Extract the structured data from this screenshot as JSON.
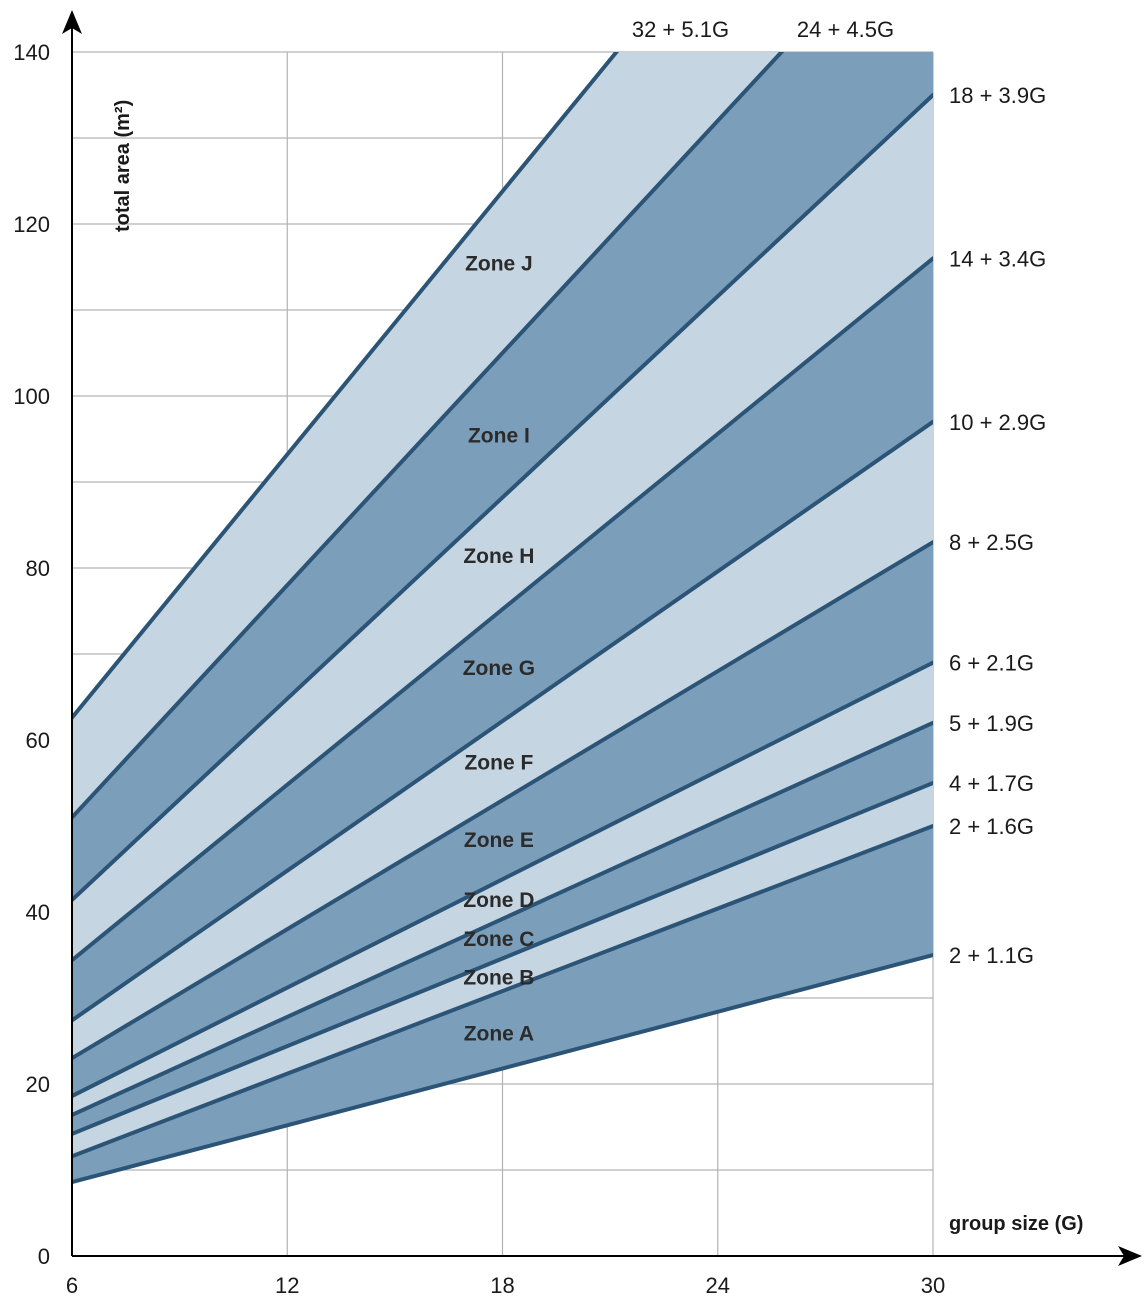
{
  "chart_data": {
    "type": "area",
    "xlabel": "group size (G)",
    "ylabel": "total area (m²)",
    "xlim": [
      6,
      30
    ],
    "ylim": [
      0,
      140
    ],
    "x_ticks": [
      6,
      12,
      18,
      24,
      30
    ],
    "y_ticks": [
      0,
      20,
      40,
      60,
      80,
      100,
      120,
      140
    ],
    "grid_x": [
      6,
      12,
      18,
      24,
      30
    ],
    "grid_y": [
      10,
      20,
      30,
      40,
      50,
      60,
      70,
      80,
      90,
      100,
      110,
      120,
      130,
      140
    ],
    "grid": true,
    "lines": [
      {
        "label": "2 + 1.1G",
        "intercept": 2,
        "slope": 1.1
      },
      {
        "label": "2 + 1.6G",
        "intercept": 2,
        "slope": 1.6
      },
      {
        "label": "4 + 1.7G",
        "intercept": 4,
        "slope": 1.7
      },
      {
        "label": "5 + 1.9G",
        "intercept": 5,
        "slope": 1.9
      },
      {
        "label": "6 + 2.1G",
        "intercept": 6,
        "slope": 2.1
      },
      {
        "label": "8 + 2.5G",
        "intercept": 8,
        "slope": 2.5
      },
      {
        "label": "10 + 2.9G",
        "intercept": 10,
        "slope": 2.9
      },
      {
        "label": "14 + 3.4G",
        "intercept": 14,
        "slope": 3.4
      },
      {
        "label": "18 + 3.9G",
        "intercept": 18,
        "slope": 3.9
      },
      {
        "label": "24 + 4.5G",
        "intercept": 24,
        "slope": 4.5
      },
      {
        "label": "32 + 5.1G",
        "intercept": 32,
        "slope": 5.1
      }
    ],
    "zones": [
      {
        "name": "Zone A",
        "shade": "dark",
        "label_x": 17.9,
        "label_y": 26
      },
      {
        "name": "Zone B",
        "shade": "light",
        "label_x": 17.9,
        "label_y": 32.5
      },
      {
        "name": "Zone C",
        "shade": "dark",
        "label_x": 17.9,
        "label_y": 37
      },
      {
        "name": "Zone D",
        "shade": "light",
        "label_x": 17.9,
        "label_y": 41.5
      },
      {
        "name": "Zone E",
        "shade": "dark",
        "label_x": 17.9,
        "label_y": 48.5
      },
      {
        "name": "Zone F",
        "shade": "light",
        "label_x": 17.9,
        "label_y": 57.5
      },
      {
        "name": "Zone G",
        "shade": "dark",
        "label_x": 17.9,
        "label_y": 68.5
      },
      {
        "name": "Zone H",
        "shade": "light",
        "label_x": 17.9,
        "label_y": 81.5
      },
      {
        "name": "Zone I",
        "shade": "dark",
        "label_x": 17.9,
        "label_y": 95.5
      },
      {
        "name": "Zone J",
        "shade": "light",
        "label_x": 17.9,
        "label_y": 115.5
      }
    ],
    "colors": {
      "dark_fill": "#7b9fbb",
      "light_fill": "#c5d5e2",
      "line": "#2b5476",
      "grid": "#b3b3b3",
      "axis": "#000000"
    }
  }
}
